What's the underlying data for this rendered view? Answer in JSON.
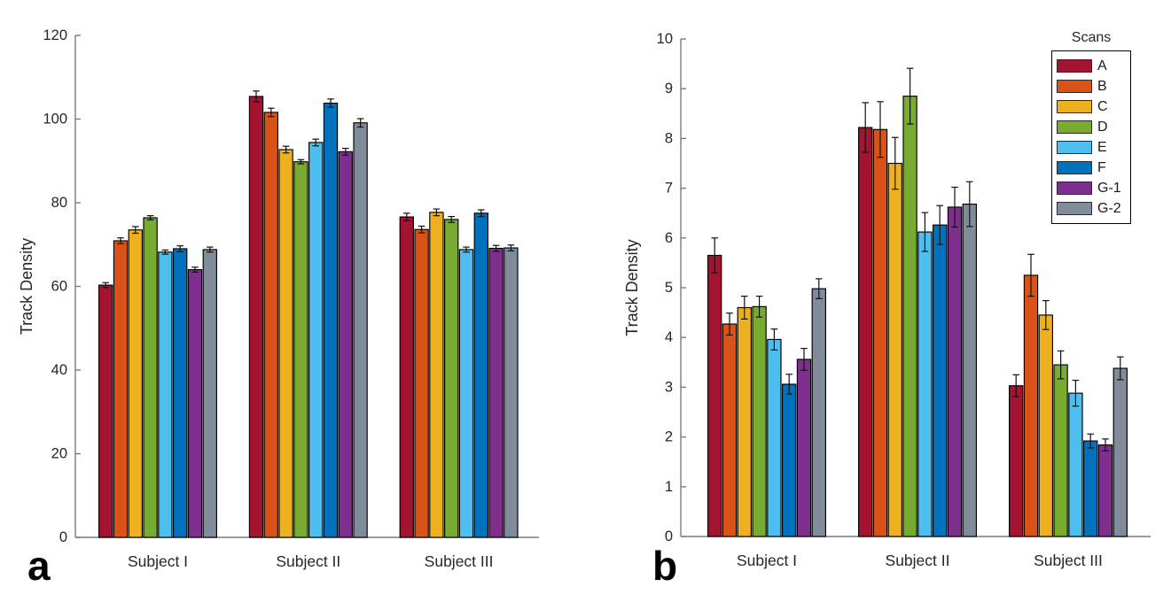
{
  "figure": {
    "background": "#ffffff",
    "axis_color": "#7a7a7a",
    "text_color": "#262626",
    "bar_edge_color": "#000000",
    "error_bar_color": "#111111",
    "panels": [
      {
        "letter": "a"
      },
      {
        "letter": "b"
      }
    ]
  },
  "legend": {
    "title": "Scans",
    "position": "top-right-of-panel-b",
    "entries": [
      {
        "label": "A",
        "color": "#A2142F"
      },
      {
        "label": "B",
        "color": "#D95319"
      },
      {
        "label": "C",
        "color": "#EDB120"
      },
      {
        "label": "D",
        "color": "#77AC30"
      },
      {
        "label": "E",
        "color": "#4DBEEE"
      },
      {
        "label": "F",
        "color": "#0072BD"
      },
      {
        "label": "G-1",
        "color": "#7E2F8E"
      },
      {
        "label": "G-2",
        "color": "#808C99"
      }
    ]
  },
  "chart_data": [
    {
      "id": "a",
      "type": "bar",
      "title": "",
      "xlabel": "",
      "ylabel": "Track Density",
      "ylim": [
        0,
        120
      ],
      "ytick_step": 20,
      "grid": false,
      "legend_visible": false,
      "error_bars": true,
      "categories": [
        "Subject I",
        "Subject II",
        "Subject III"
      ],
      "series": [
        {
          "name": "A",
          "color": "#A2142F",
          "values": [
            60.3,
            105.4,
            76.6
          ],
          "errors": [
            0.6,
            1.3,
            0.9
          ]
        },
        {
          "name": "B",
          "color": "#D95319",
          "values": [
            70.9,
            101.6,
            73.6
          ],
          "errors": [
            0.7,
            1.0,
            0.8
          ]
        },
        {
          "name": "C",
          "color": "#EDB120",
          "values": [
            73.5,
            92.7,
            77.7
          ],
          "errors": [
            0.8,
            0.8,
            0.8
          ]
        },
        {
          "name": "D",
          "color": "#77AC30",
          "values": [
            76.4,
            89.8,
            76.0
          ],
          "errors": [
            0.5,
            0.5,
            0.7
          ]
        },
        {
          "name": "E",
          "color": "#4DBEEE",
          "values": [
            68.2,
            94.4,
            68.8
          ],
          "errors": [
            0.5,
            0.8,
            0.6
          ]
        },
        {
          "name": "F",
          "color": "#0072BD",
          "values": [
            69.0,
            103.8,
            77.5
          ],
          "errors": [
            0.7,
            1.0,
            0.8
          ]
        },
        {
          "name": "G-1",
          "color": "#7E2F8E",
          "values": [
            64.0,
            92.2,
            69.1
          ],
          "errors": [
            0.6,
            0.8,
            0.7
          ]
        },
        {
          "name": "G-2",
          "color": "#808C99",
          "values": [
            68.8,
            99.1,
            69.2
          ],
          "errors": [
            0.6,
            1.0,
            0.7
          ]
        }
      ]
    },
    {
      "id": "b",
      "type": "bar",
      "title": "",
      "xlabel": "",
      "ylabel": "Track Density",
      "ylim": [
        0,
        10
      ],
      "ytick_step": 1,
      "grid": false,
      "legend_visible": true,
      "legend_title": "Scans",
      "error_bars": true,
      "categories": [
        "Subject I",
        "Subject II",
        "Subject III"
      ],
      "series": [
        {
          "name": "A",
          "color": "#A2142F",
          "values": [
            5.65,
            8.22,
            3.03
          ],
          "errors": [
            0.35,
            0.5,
            0.22
          ]
        },
        {
          "name": "B",
          "color": "#D95319",
          "values": [
            4.27,
            8.18,
            5.25
          ],
          "errors": [
            0.22,
            0.56,
            0.42
          ]
        },
        {
          "name": "C",
          "color": "#EDB120",
          "values": [
            4.6,
            7.5,
            4.45
          ],
          "errors": [
            0.23,
            0.52,
            0.29
          ]
        },
        {
          "name": "D",
          "color": "#77AC30",
          "values": [
            4.62,
            8.85,
            3.45
          ],
          "errors": [
            0.21,
            0.56,
            0.28
          ]
        },
        {
          "name": "E",
          "color": "#4DBEEE",
          "values": [
            3.96,
            6.12,
            2.88
          ],
          "errors": [
            0.21,
            0.39,
            0.26
          ]
        },
        {
          "name": "F",
          "color": "#0072BD",
          "values": [
            3.06,
            6.26,
            1.92
          ],
          "errors": [
            0.2,
            0.39,
            0.14
          ]
        },
        {
          "name": "G-1",
          "color": "#7E2F8E",
          "values": [
            3.56,
            6.62,
            1.84
          ],
          "errors": [
            0.22,
            0.4,
            0.12
          ]
        },
        {
          "name": "G-2",
          "color": "#808C99",
          "values": [
            4.98,
            6.68,
            3.38
          ],
          "errors": [
            0.2,
            0.45,
            0.23
          ]
        }
      ]
    }
  ]
}
